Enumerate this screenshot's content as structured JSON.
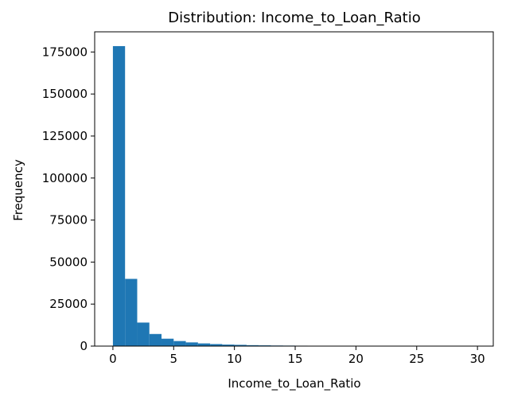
{
  "chart_data": {
    "type": "bar",
    "title": "Distribution: Income_to_Loan_Ratio",
    "xlabel": "Income_to_Loan_Ratio",
    "ylabel": "Frequency",
    "xlim": [
      -1.5,
      31.3
    ],
    "ylim": [
      0,
      187000
    ],
    "xticks": [
      0,
      5,
      10,
      15,
      20,
      25,
      30
    ],
    "yticks": [
      0,
      25000,
      50000,
      75000,
      100000,
      125000,
      150000,
      175000
    ],
    "bin_edges": [
      0,
      1,
      2,
      3,
      4,
      5,
      6,
      7,
      8,
      9,
      10,
      11,
      12,
      13,
      14,
      15,
      16,
      17,
      18,
      19,
      20,
      21,
      22,
      23,
      24,
      25,
      26,
      27,
      28,
      29,
      30
    ],
    "values": [
      178500,
      40000,
      14000,
      7200,
      4400,
      3000,
      2200,
      1600,
      1200,
      900,
      750,
      550,
      450,
      350,
      300,
      250,
      200,
      130,
      100,
      90,
      80,
      70,
      60,
      50,
      40,
      30,
      25,
      20,
      15,
      10
    ],
    "bar_color": "#1f77b4",
    "grid": false,
    "legend": "none"
  }
}
